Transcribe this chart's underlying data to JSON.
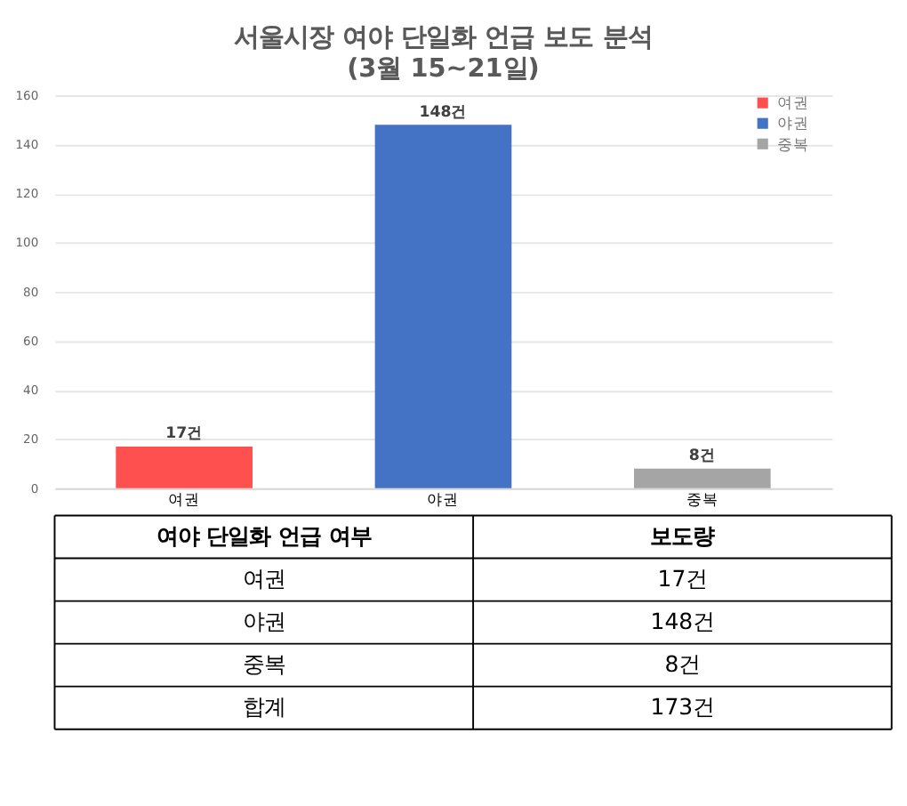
{
  "chart_data": {
    "type": "bar",
    "title": "서울시장 여야 단일화 언급 보도 분석",
    "subtitle": "(3월 15~21일)",
    "categories": [
      "여권",
      "야권",
      "중복"
    ],
    "series": [
      {
        "name": "여권",
        "color": "#ff5050",
        "values": [
          17,
          null,
          null
        ],
        "value_labels": [
          "17건",
          null,
          null
        ]
      },
      {
        "name": "야권",
        "color": "#4472c4",
        "values": [
          null,
          148,
          null
        ],
        "value_labels": [
          null,
          "148건",
          null
        ]
      },
      {
        "name": "중복",
        "color": "#a5a5a5",
        "values": [
          null,
          null,
          8
        ],
        "value_labels": [
          null,
          null,
          "8건"
        ]
      }
    ],
    "ylim": [
      0,
      160
    ],
    "yticks": [
      0,
      20,
      40,
      60,
      80,
      100,
      120,
      140,
      160
    ],
    "grid": "y",
    "legend": "top right",
    "annotations": [
      "여야 단일화 언급 여부",
      "보도량",
      "합계",
      "173건"
    ]
  }
}
